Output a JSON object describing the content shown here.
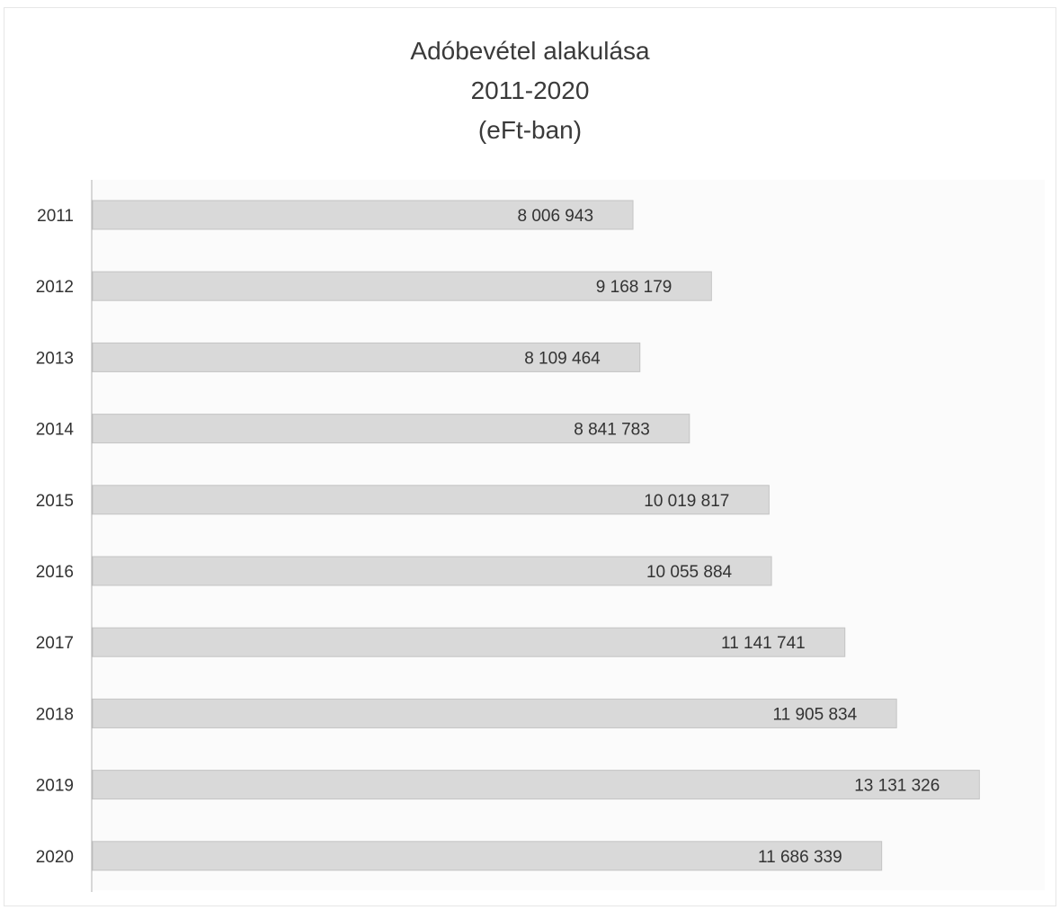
{
  "chart_data": {
    "type": "bar",
    "orientation": "horizontal",
    "title_lines": [
      "Adóbevétel alakulása",
      "2011-2020",
      "(eFt-ban)"
    ],
    "categories": [
      "2011",
      "2012",
      "2013",
      "2014",
      "2015",
      "2016",
      "2017",
      "2018",
      "2019",
      "2020"
    ],
    "values": [
      8006943,
      9168179,
      8109464,
      8841783,
      10019817,
      10055884,
      11141741,
      11905834,
      13131326,
      11686339
    ],
    "value_labels": [
      "8 006 943",
      "9 168 179",
      "8 109 464",
      "8 841 783",
      "10 019 817",
      "10 055 884",
      "11 141 741",
      "11 905 834",
      "13 131 326",
      "11 686 339"
    ],
    "xlim": [
      0,
      13300000
    ],
    "grid": false,
    "legend": "none",
    "colors": {
      "bar_fill": "#d9d9d9",
      "bar_stroke": "#c4c4c4",
      "axis": "#b0b0b0",
      "text": "#333333"
    }
  }
}
